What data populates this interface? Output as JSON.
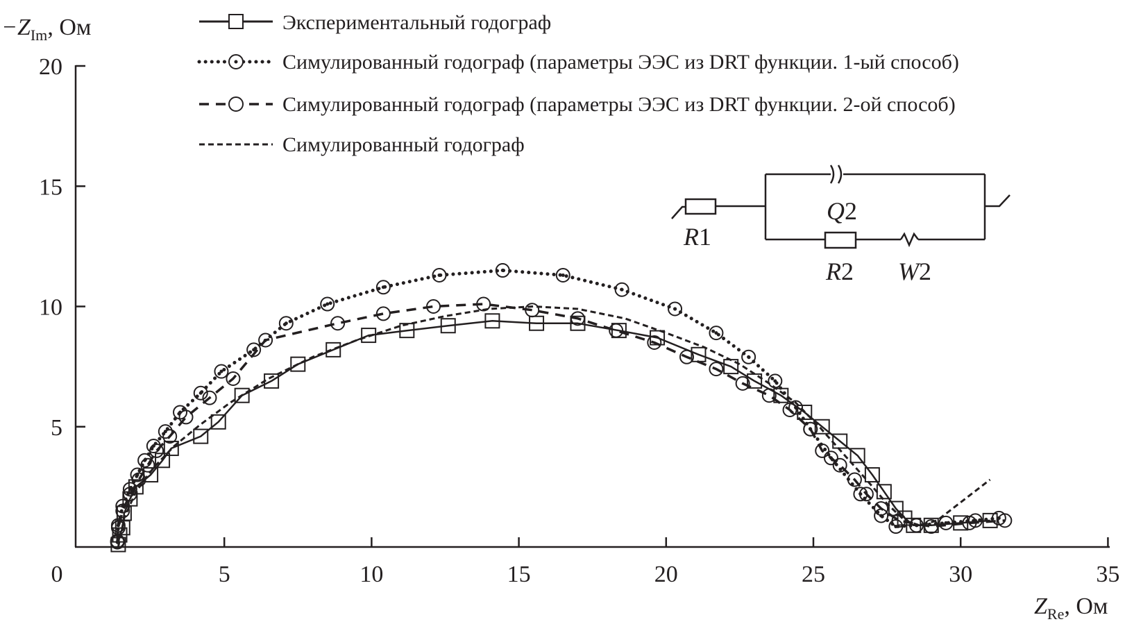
{
  "chart_data": {
    "type": "scatter",
    "title": "",
    "xlabel": {
      "main": "Z",
      "sub": "Re",
      "unit": ", Ом"
    },
    "ylabel": {
      "prefix": "−Z",
      "sub": "Im",
      "unit": ", Ом"
    },
    "xlim": [
      0,
      35
    ],
    "ylim": [
      0,
      20
    ],
    "xticks": [
      0,
      5,
      10,
      15,
      20,
      25,
      30,
      35
    ],
    "yticks": [
      5,
      10,
      15,
      20
    ],
    "grid": false,
    "legend_position": "top-center",
    "colors": {
      "ink": "#231f20"
    },
    "series": [
      {
        "name": "Экспериментальный годограф",
        "line": "solid",
        "marker": "square",
        "x": [
          1.4,
          1.45,
          1.55,
          1.6,
          1.8,
          2.0,
          2.5,
          2.9,
          3.2,
          4.2,
          4.8,
          5.6,
          6.6,
          7.5,
          8.7,
          9.9,
          11.2,
          12.6,
          14.1,
          15.6,
          17.0,
          18.4,
          19.7,
          21.1,
          22.2,
          23.0,
          23.9,
          24.7,
          25.3,
          25.9,
          26.5,
          27.0,
          27.4,
          27.8,
          28.1,
          28.4,
          29.0,
          30.0,
          31.0
        ],
        "y": [
          0.1,
          0.5,
          0.8,
          1.4,
          2.0,
          2.5,
          3.0,
          3.6,
          4.1,
          4.6,
          5.2,
          6.3,
          6.9,
          7.6,
          8.2,
          8.8,
          9.0,
          9.2,
          9.4,
          9.3,
          9.3,
          9.0,
          8.7,
          8.0,
          7.5,
          6.9,
          6.3,
          5.6,
          5.0,
          4.4,
          3.8,
          3.0,
          2.3,
          1.6,
          1.2,
          0.9,
          0.9,
          1.0,
          1.1
        ]
      },
      {
        "name": "Симулированный годограф (параметры ЭЭС из DRT функции. 1-ый способ)",
        "line": "dotted",
        "marker": "circle-dot",
        "x": [
          1.37,
          1.4,
          1.55,
          1.8,
          2.05,
          2.3,
          2.6,
          3.0,
          3.5,
          4.2,
          4.9,
          6.0,
          7.1,
          8.5,
          10.4,
          12.3,
          14.45,
          16.5,
          18.5,
          20.3,
          21.7,
          22.8,
          23.7,
          24.4,
          24.9,
          25.6,
          26.6,
          27.3,
          27.8,
          28.5,
          29.5,
          30.5,
          31.3
        ],
        "y": [
          0.2,
          0.9,
          1.7,
          2.4,
          3.0,
          3.6,
          4.2,
          4.8,
          5.6,
          6.4,
          7.3,
          8.2,
          9.3,
          10.1,
          10.8,
          11.3,
          11.5,
          11.3,
          10.7,
          9.9,
          8.9,
          7.9,
          6.9,
          5.8,
          4.9,
          3.7,
          2.2,
          1.3,
          0.85,
          0.9,
          1.0,
          1.1,
          1.2
        ]
      },
      {
        "name": "Симулированный годограф (параметры ЭЭС из DRT функции. 2-ой способ)",
        "line": "dashed",
        "marker": "circle",
        "x": [
          1.37,
          1.4,
          1.55,
          1.8,
          2.1,
          2.4,
          2.7,
          3.15,
          3.7,
          4.5,
          5.3,
          6.4,
          8.85,
          10.4,
          12.1,
          13.8,
          15.45,
          17.0,
          18.3,
          19.6,
          20.7,
          21.7,
          22.6,
          23.5,
          24.2,
          24.9,
          25.3,
          25.9,
          26.4,
          26.8,
          27.3,
          27.9,
          29.0,
          30.3,
          31.5
        ],
        "y": [
          0.25,
          0.8,
          1.5,
          2.2,
          2.8,
          3.4,
          4.0,
          4.6,
          5.4,
          6.2,
          7.0,
          8.6,
          9.3,
          9.7,
          10.0,
          10.1,
          9.85,
          9.5,
          9.0,
          8.5,
          7.9,
          7.4,
          6.8,
          6.3,
          5.7,
          4.9,
          4.0,
          3.4,
          2.8,
          2.2,
          1.6,
          1.1,
          0.85,
          1.0,
          1.1
        ]
      },
      {
        "name": "Симулированный годограф",
        "line": "short-dashed",
        "marker": "none",
        "x": [
          1.4,
          1.6,
          2.0,
          2.6,
          3.3,
          4.2,
          5.2,
          6.5,
          8.0,
          9.5,
          11.0,
          12.5,
          14.0,
          15.5,
          17.0,
          18.6,
          20.0,
          21.3,
          22.5,
          23.5,
          24.4,
          25.2,
          26.0,
          26.8,
          27.5,
          28.1,
          28.6,
          29.2,
          31.0
        ],
        "y": [
          0.0,
          1.2,
          2.3,
          3.3,
          4.2,
          5.1,
          6.0,
          7.0,
          7.9,
          8.6,
          9.2,
          9.6,
          9.9,
          10.0,
          9.9,
          9.5,
          8.9,
          8.3,
          7.6,
          6.8,
          6.0,
          5.0,
          3.9,
          2.8,
          1.8,
          1.1,
          0.9,
          1.1,
          2.8
        ]
      }
    ],
    "inset_circuit": {
      "labels": {
        "r1": {
          "letter": "R",
          "num": "1"
        },
        "q2": {
          "letter": "Q",
          "num": "2"
        },
        "r2": {
          "letter": "R",
          "num": "2"
        },
        "w2": {
          "letter": "W",
          "num": "2"
        }
      }
    }
  }
}
